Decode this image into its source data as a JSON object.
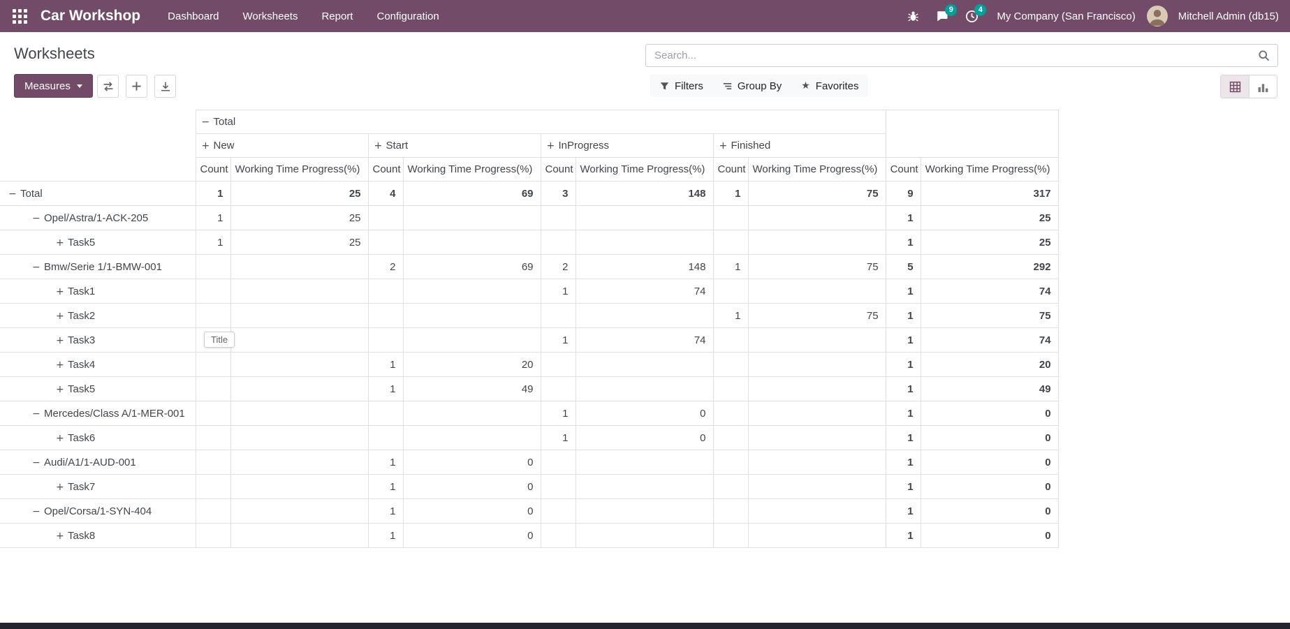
{
  "navbar": {
    "brand": "Car Workshop",
    "menu_items": [
      "Dashboard",
      "Worksheets",
      "Report",
      "Configuration"
    ],
    "messages_badge": "9",
    "activities_badge": "4",
    "company": "My Company (San Francisco)",
    "user": "Mitchell Admin (db15)"
  },
  "control_panel": {
    "title": "Worksheets",
    "search_placeholder": "Search...",
    "measures_label": "Measures",
    "filters_label": "Filters",
    "group_by_label": "Group By",
    "favorites_label": "Favorites"
  },
  "icons": {
    "expanded": "−",
    "collapsed": "+",
    "favorites_star": "★"
  },
  "pivot": {
    "top_header": "Total",
    "col_groups": [
      "New",
      "Start",
      "InProgress",
      "Finished"
    ],
    "measure_headers": [
      "Count",
      "Working Time Progress(%)"
    ],
    "tooltip": "Title",
    "rows": [
      {
        "label": "Total",
        "level": 0,
        "expanded": true,
        "bold": true,
        "cells": [
          "1",
          "25",
          "4",
          "69",
          "3",
          "148",
          "1",
          "75",
          "9",
          "317"
        ]
      },
      {
        "label": "Opel/Astra/1-ACK-205",
        "level": 1,
        "expanded": true,
        "cells": [
          "1",
          "25",
          "",
          "",
          "",
          "",
          "",
          "",
          "1",
          "25"
        ]
      },
      {
        "label": "Task5",
        "level": 2,
        "expanded": false,
        "cells": [
          "1",
          "25",
          "",
          "",
          "",
          "",
          "",
          "",
          "1",
          "25"
        ]
      },
      {
        "label": "Bmw/Serie 1/1-BMW-001",
        "level": 1,
        "expanded": true,
        "cells": [
          "",
          "",
          "2",
          "69",
          "2",
          "148",
          "1",
          "75",
          "5",
          "292"
        ]
      },
      {
        "label": "Task1",
        "level": 2,
        "expanded": false,
        "cells": [
          "",
          "",
          "",
          "",
          "1",
          "74",
          "",
          "",
          "1",
          "74"
        ]
      },
      {
        "label": "Task2",
        "level": 2,
        "expanded": false,
        "cells": [
          "",
          "",
          "",
          "",
          "",
          "",
          "1",
          "75",
          "1",
          "75"
        ]
      },
      {
        "label": "Task3",
        "level": 2,
        "expanded": false,
        "cells": [
          "",
          "",
          "",
          "",
          "1",
          "74",
          "",
          "",
          "1",
          "74"
        ]
      },
      {
        "label": "Task4",
        "level": 2,
        "expanded": false,
        "cells": [
          "",
          "",
          "1",
          "20",
          "",
          "",
          "",
          "",
          "1",
          "20"
        ]
      },
      {
        "label": "Task5",
        "level": 2,
        "expanded": false,
        "cells": [
          "",
          "",
          "1",
          "49",
          "",
          "",
          "",
          "",
          "1",
          "49"
        ]
      },
      {
        "label": "Mercedes/Class A/1-MER-001",
        "level": 1,
        "expanded": true,
        "cells": [
          "",
          "",
          "",
          "",
          "1",
          "0",
          "",
          "",
          "1",
          "0"
        ]
      },
      {
        "label": "Task6",
        "level": 2,
        "expanded": false,
        "cells": [
          "",
          "",
          "",
          "",
          "1",
          "0",
          "",
          "",
          "1",
          "0"
        ]
      },
      {
        "label": "Audi/A1/1-AUD-001",
        "level": 1,
        "expanded": true,
        "cells": [
          "",
          "",
          "1",
          "0",
          "",
          "",
          "",
          "",
          "1",
          "0"
        ]
      },
      {
        "label": "Task7",
        "level": 2,
        "expanded": false,
        "cells": [
          "",
          "",
          "1",
          "0",
          "",
          "",
          "",
          "",
          "1",
          "0"
        ]
      },
      {
        "label": "Opel/Corsa/1-SYN-404",
        "level": 1,
        "expanded": true,
        "cells": [
          "",
          "",
          "1",
          "0",
          "",
          "",
          "",
          "",
          "1",
          "0"
        ]
      },
      {
        "label": "Task8",
        "level": 2,
        "expanded": false,
        "cells": [
          "",
          "",
          "1",
          "0",
          "",
          "",
          "",
          "",
          "1",
          "0"
        ]
      }
    ]
  },
  "colors": {
    "navbar_bg": "#714B67",
    "primary": "#714B67",
    "badge": "#00A09D"
  }
}
